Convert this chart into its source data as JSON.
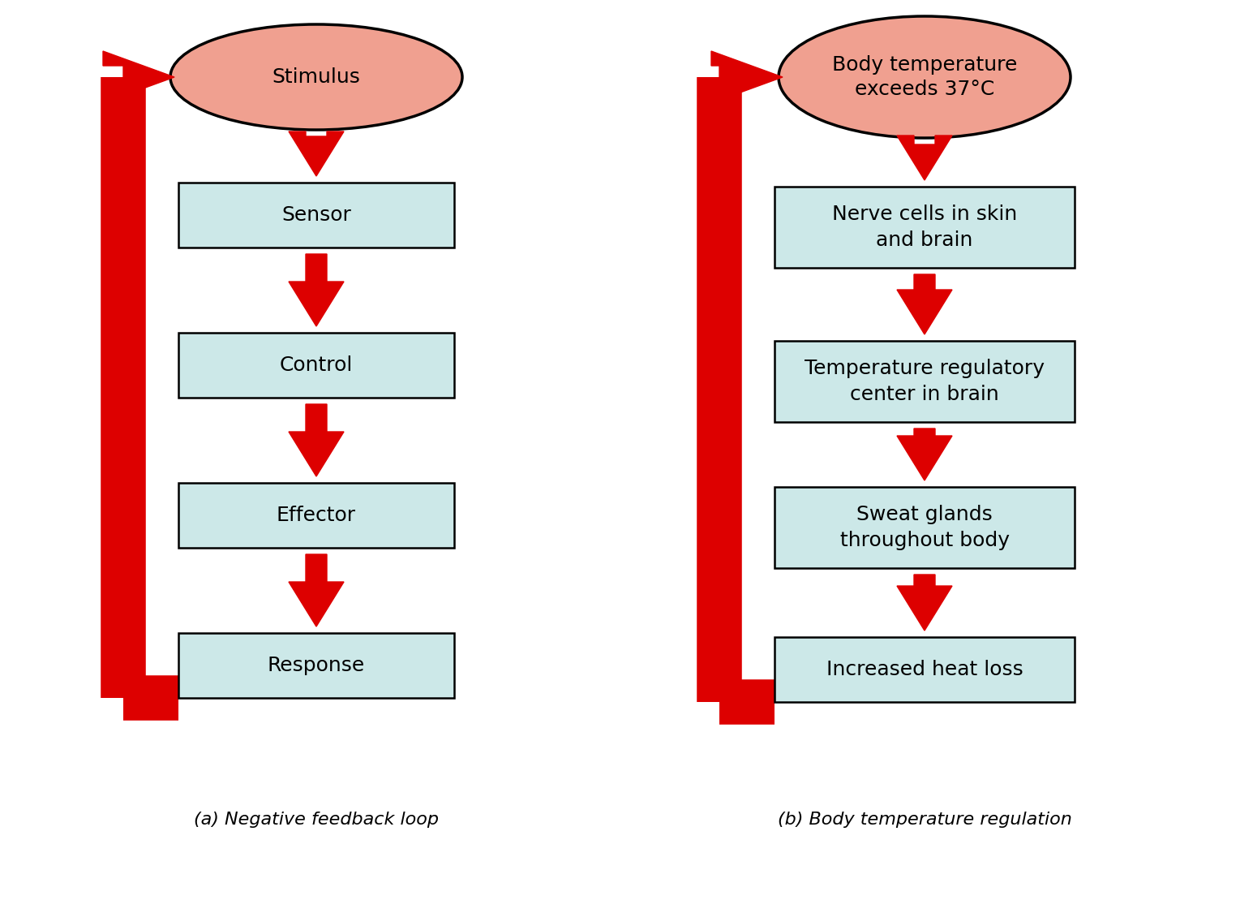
{
  "bg_color": "#ffffff",
  "arrow_color": "#dd0000",
  "box_fill": "#cce8e8",
  "box_edge": "#000000",
  "ellipse_fill": "#f0a090",
  "ellipse_edge": "#000000",
  "diagram_a": {
    "title": "(a) Negative feedback loop",
    "ellipse_text": "Stimulus",
    "boxes": [
      "Sensor",
      "Control",
      "Effector",
      "Response"
    ]
  },
  "diagram_b": {
    "title": "(b) Body temperature regulation",
    "ellipse_text": "Body temperature\nexceeds 37°C",
    "boxes": [
      "Nerve cells in skin\nand brain",
      "Temperature regulatory\ncenter in brain",
      "Sweat glands\nthroughout body",
      "Increased heat loss"
    ]
  },
  "font_size_box": 18,
  "font_size_ellipse": 18,
  "font_size_title": 16
}
